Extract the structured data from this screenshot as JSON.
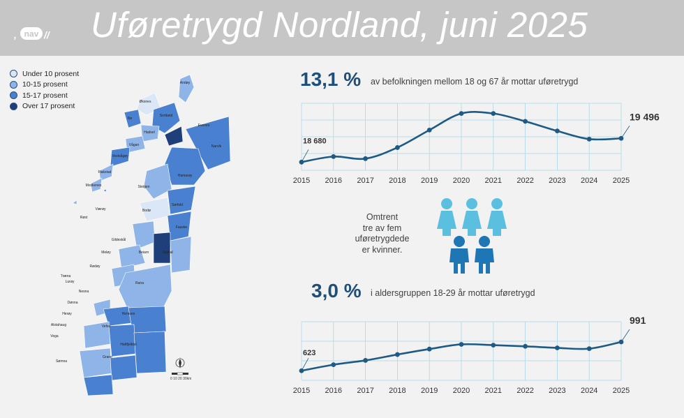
{
  "header": {
    "title": "Uføretrygd Nordland, juni 2025",
    "logo_text": "nav"
  },
  "colors": {
    "header_bg": "#c6c6c6",
    "accent": "#1f4e79",
    "line": "#1f5a85",
    "people_women": "#5bc0e0",
    "people_men": "#1f76b4"
  },
  "legend": {
    "items": [
      {
        "label": "Under 10 prosent",
        "color": "#dbe7f7"
      },
      {
        "label": "10-15 prosent",
        "color": "#8fb4e8"
      },
      {
        "label": "15-17 prosent",
        "color": "#4a80d0"
      },
      {
        "label": "Over 17 prosent",
        "color": "#1e3f7a"
      }
    ]
  },
  "map": {
    "municipalities": [
      {
        "name": "Andøy",
        "code": "1871"
      },
      {
        "name": "Øksnes",
        "code": "1868"
      },
      {
        "name": "Bø",
        "code": "1867"
      },
      {
        "name": "Sortland - Suortá",
        "code": "1870"
      },
      {
        "name": "Hadsel",
        "code": "1866"
      },
      {
        "name": "Evenes",
        "code": "1853"
      },
      {
        "name": "Vågan",
        "code": "1865"
      },
      {
        "name": "Vestvågøy",
        "code": "1860"
      },
      {
        "name": "Lødingen",
        "code": "1851"
      },
      {
        "name": "Narvik",
        "code": "1806"
      },
      {
        "name": "Flakstad",
        "code": "1859"
      },
      {
        "name": "Moskenes",
        "code": "1874"
      },
      {
        "name": "Hamarøy - Hábmer",
        "code": "1875"
      },
      {
        "name": "Steigen",
        "code": "1848"
      },
      {
        "name": "Værøy",
        "code": "1857"
      },
      {
        "name": "Røst",
        "code": "1856"
      },
      {
        "name": "Sørfold",
        "code": "1845"
      },
      {
        "name": "Bodø",
        "code": "1804"
      },
      {
        "name": "Fauske - Fuossko",
        "code": "1841"
      },
      {
        "name": "Gildeskål",
        "code": "1838"
      },
      {
        "name": "Beiarn",
        "code": "1839"
      },
      {
        "name": "Saltdal",
        "code": "1840"
      },
      {
        "name": "Meløy",
        "code": "1837"
      },
      {
        "name": "Rødøy",
        "code": "1836"
      },
      {
        "name": "Træna",
        "code": "1835"
      },
      {
        "name": "Lurøy",
        "code": "1834"
      },
      {
        "name": "Rana",
        "code": "1833"
      },
      {
        "name": "Nesna",
        "code": "1828"
      },
      {
        "name": "Dønna",
        "code": "1827"
      },
      {
        "name": "Herøy",
        "code": "1818"
      },
      {
        "name": "Hemnes",
        "code": "1832"
      },
      {
        "name": "Alstahaug",
        "code": "1820"
      },
      {
        "name": "Vefsn",
        "code": "1824"
      },
      {
        "name": "Vega",
        "code": "1815"
      },
      {
        "name": "Hattfjelldal",
        "code": "1826"
      },
      {
        "name": "Sømna",
        "code": "1812"
      },
      {
        "name": "Grane",
        "code": "1825"
      },
      {
        "name": "Brønnøy",
        "code": "1813"
      },
      {
        "name": "Vevelstad",
        "code": "1816"
      },
      {
        "name": "Bindal",
        "code": "1811"
      }
    ],
    "scale": {
      "label": "0  10  20  30km",
      "north": "N"
    }
  },
  "stat1": {
    "value": "13,1 %",
    "label": "av befolkningen mellom 18 og 67 år mottar uføretrygd"
  },
  "stat2": {
    "value": "3,0 %",
    "label": "i aldersgruppen 18-29 år mottar uføretrygd"
  },
  "middle": {
    "text_lines": [
      "Omtrent",
      "tre av fem",
      "uføretrygdede",
      "er kvinner."
    ]
  },
  "chart_data": [
    {
      "type": "line",
      "x": [
        "2015",
        "2016",
        "2017",
        "2018",
        "2019",
        "2020",
        "2021",
        "2022",
        "2023",
        "2024",
        "2025"
      ],
      "series": [
        {
          "values": [
            18680,
            18870,
            18800,
            19180,
            19780,
            20350,
            20350,
            20080,
            19750,
            19470,
            19496
          ]
        }
      ],
      "ylim": [
        18400,
        20700
      ],
      "labels": {
        "first": "18 680",
        "last": "19 496"
      },
      "grid": true
    },
    {
      "type": "line",
      "x": [
        "2015",
        "2016",
        "2017",
        "2018",
        "2019",
        "2020",
        "2021",
        "2022",
        "2023",
        "2024",
        "2025"
      ],
      "series": [
        {
          "values": [
            623,
            700,
            755,
            830,
            900,
            960,
            950,
            935,
            915,
            905,
            991
          ]
        }
      ],
      "ylim": [
        500,
        1250
      ],
      "labels": {
        "first": "623",
        "last": "991"
      },
      "grid": true
    }
  ]
}
